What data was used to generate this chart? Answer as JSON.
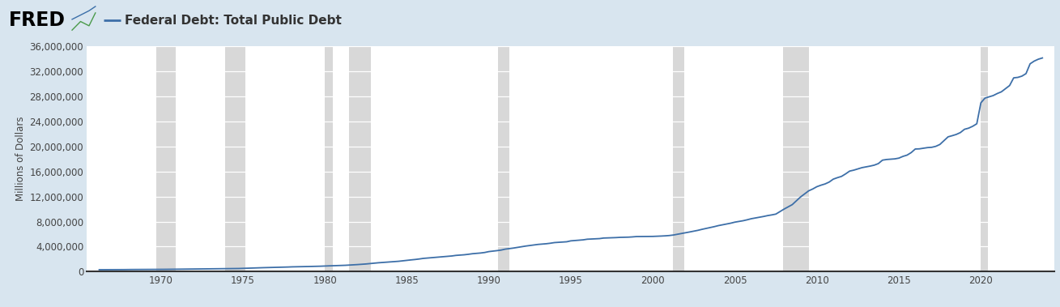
{
  "title": "Federal Debt: Total Public Debt",
  "ylabel": "Millions of Dollars",
  "line_color": "#3d6fa8",
  "line_width": 1.3,
  "fig_bg_color": "#d8e5ef",
  "plot_bg_color": "#ffffff",
  "header_bg_color": "#d8e5ef",
  "ylim": [
    0,
    36000000
  ],
  "yticks": [
    0,
    4000000,
    8000000,
    12000000,
    16000000,
    20000000,
    24000000,
    28000000,
    32000000,
    36000000
  ],
  "ytick_labels": [
    "0",
    "4,000,000",
    "8,000,000",
    "12,000,000",
    "16,000,000",
    "20,000,000",
    "24,000,000",
    "28,000,000",
    "32,000,000",
    "36,000,000"
  ],
  "xlim_start": 1965.5,
  "xlim_end": 2024.5,
  "xtick_years": [
    1970,
    1975,
    1980,
    1985,
    1990,
    1995,
    2000,
    2005,
    2010,
    2015,
    2020
  ],
  "recession_bands": [
    [
      1969.75,
      1970.92
    ],
    [
      1973.92,
      1975.17
    ],
    [
      1980.0,
      1980.5
    ],
    [
      1981.5,
      1982.83
    ],
    [
      1990.58,
      1991.25
    ],
    [
      2001.25,
      2001.92
    ],
    [
      2007.92,
      2009.5
    ],
    [
      2020.0,
      2020.42
    ]
  ],
  "recession_color": "#c8c8c8",
  "recession_alpha": 0.7,
  "data": [
    [
      1966.25,
      319907
    ],
    [
      1966.5,
      321400
    ],
    [
      1966.75,
      323000
    ],
    [
      1967.0,
      326331
    ],
    [
      1967.25,
      328000
    ],
    [
      1967.5,
      330000
    ],
    [
      1967.75,
      333000
    ],
    [
      1968.0,
      347578
    ],
    [
      1968.25,
      349000
    ],
    [
      1968.5,
      351000
    ],
    [
      1968.75,
      352000
    ],
    [
      1969.0,
      353720
    ],
    [
      1969.25,
      354000
    ],
    [
      1969.5,
      355000
    ],
    [
      1969.75,
      356000
    ],
    [
      1970.0,
      370919
    ],
    [
      1970.25,
      375000
    ],
    [
      1970.5,
      382000
    ],
    [
      1970.75,
      390000
    ],
    [
      1971.0,
      398129
    ],
    [
      1971.25,
      403000
    ],
    [
      1971.5,
      409000
    ],
    [
      1971.75,
      415000
    ],
    [
      1972.0,
      427260
    ],
    [
      1972.25,
      433000
    ],
    [
      1972.5,
      440000
    ],
    [
      1972.75,
      447000
    ],
    [
      1973.0,
      458141
    ],
    [
      1973.25,
      462000
    ],
    [
      1973.5,
      466000
    ],
    [
      1973.75,
      470000
    ],
    [
      1974.0,
      475059
    ],
    [
      1974.25,
      483000
    ],
    [
      1974.5,
      495000
    ],
    [
      1974.75,
      510000
    ],
    [
      1975.0,
      533189
    ],
    [
      1975.25,
      556000
    ],
    [
      1975.5,
      577000
    ],
    [
      1975.75,
      598000
    ],
    [
      1976.0,
      620433
    ],
    [
      1976.25,
      641000
    ],
    [
      1976.5,
      657000
    ],
    [
      1976.75,
      676000
    ],
    [
      1977.0,
      698840
    ],
    [
      1977.25,
      714000
    ],
    [
      1977.5,
      729000
    ],
    [
      1977.75,
      745000
    ],
    [
      1978.0,
      771544
    ],
    [
      1978.25,
      782000
    ],
    [
      1978.5,
      793000
    ],
    [
      1978.75,
      807000
    ],
    [
      1979.0,
      826519
    ],
    [
      1979.25,
      840000
    ],
    [
      1979.5,
      857000
    ],
    [
      1979.75,
      876000
    ],
    [
      1980.0,
      907701
    ],
    [
      1980.25,
      930000
    ],
    [
      1980.5,
      952000
    ],
    [
      1980.75,
      970000
    ],
    [
      1981.0,
      994845
    ],
    [
      1981.25,
      1020000
    ],
    [
      1981.5,
      1055000
    ],
    [
      1981.75,
      1090000
    ],
    [
      1982.0,
      1137345
    ],
    [
      1982.25,
      1185000
    ],
    [
      1982.5,
      1230000
    ],
    [
      1982.75,
      1295000
    ],
    [
      1983.0,
      1371660
    ],
    [
      1983.25,
      1420000
    ],
    [
      1983.5,
      1468000
    ],
    [
      1983.75,
      1515000
    ],
    [
      1984.0,
      1564586
    ],
    [
      1984.25,
      1610000
    ],
    [
      1984.5,
      1660000
    ],
    [
      1984.75,
      1735000
    ],
    [
      1985.0,
      1817521
    ],
    [
      1985.25,
      1880000
    ],
    [
      1985.5,
      1945000
    ],
    [
      1985.75,
      2025000
    ],
    [
      1986.0,
      2120629
    ],
    [
      1986.25,
      2175000
    ],
    [
      1986.5,
      2225000
    ],
    [
      1986.75,
      2285000
    ],
    [
      1987.0,
      2346125
    ],
    [
      1987.25,
      2395000
    ],
    [
      1987.5,
      2445000
    ],
    [
      1987.75,
      2510000
    ],
    [
      1988.0,
      2601307
    ],
    [
      1988.25,
      2650000
    ],
    [
      1988.5,
      2700000
    ],
    [
      1988.75,
      2775000
    ],
    [
      1989.0,
      2867500
    ],
    [
      1989.25,
      2920000
    ],
    [
      1989.5,
      2980000
    ],
    [
      1989.75,
      3065000
    ],
    [
      1990.0,
      3206290
    ],
    [
      1990.25,
      3280000
    ],
    [
      1990.5,
      3360000
    ],
    [
      1990.75,
      3450000
    ],
    [
      1991.0,
      3598178
    ],
    [
      1991.25,
      3680000
    ],
    [
      1991.5,
      3770000
    ],
    [
      1991.75,
      3880000
    ],
    [
      1992.0,
      4001787
    ],
    [
      1992.25,
      4090000
    ],
    [
      1992.5,
      4175000
    ],
    [
      1992.75,
      4265000
    ],
    [
      1993.0,
      4351044
    ],
    [
      1993.25,
      4405000
    ],
    [
      1993.5,
      4460000
    ],
    [
      1993.75,
      4540000
    ],
    [
      1994.0,
      4643307
    ],
    [
      1994.25,
      4685000
    ],
    [
      1994.5,
      4730000
    ],
    [
      1994.75,
      4775000
    ],
    [
      1995.0,
      4920586
    ],
    [
      1995.25,
      4970000
    ],
    [
      1995.5,
      5020000
    ],
    [
      1995.75,
      5080000
    ],
    [
      1996.0,
      5181465
    ],
    [
      1996.25,
      5210000
    ],
    [
      1996.5,
      5240000
    ],
    [
      1996.75,
      5280000
    ],
    [
      1997.0,
      5369206
    ],
    [
      1997.25,
      5390000
    ],
    [
      1997.5,
      5410000
    ],
    [
      1997.75,
      5440000
    ],
    [
      1998.0,
      5478189
    ],
    [
      1998.25,
      5490000
    ],
    [
      1998.5,
      5510000
    ],
    [
      1998.75,
      5550000
    ],
    [
      1999.0,
      5605523
    ],
    [
      1999.25,
      5610000
    ],
    [
      1999.5,
      5620000
    ],
    [
      1999.75,
      5625000
    ],
    [
      2000.0,
      5628700
    ],
    [
      2000.25,
      5650000
    ],
    [
      2000.5,
      5685000
    ],
    [
      2000.75,
      5720000
    ],
    [
      2001.0,
      5769881
    ],
    [
      2001.25,
      5850000
    ],
    [
      2001.5,
      5970000
    ],
    [
      2001.75,
      6080000
    ],
    [
      2002.0,
      6198401
    ],
    [
      2002.25,
      6340000
    ],
    [
      2002.5,
      6470000
    ],
    [
      2002.75,
      6600000
    ],
    [
      2003.0,
      6760014
    ],
    [
      2003.25,
      6900000
    ],
    [
      2003.5,
      7040000
    ],
    [
      2003.75,
      7190000
    ],
    [
      2004.0,
      7354657
    ],
    [
      2004.25,
      7480000
    ],
    [
      2004.5,
      7600000
    ],
    [
      2004.75,
      7740000
    ],
    [
      2005.0,
      7905300
    ],
    [
      2005.25,
      8020000
    ],
    [
      2005.5,
      8130000
    ],
    [
      2005.75,
      8280000
    ],
    [
      2006.0,
      8451350
    ],
    [
      2006.25,
      8570000
    ],
    [
      2006.5,
      8690000
    ],
    [
      2006.75,
      8810000
    ],
    [
      2007.0,
      8950744
    ],
    [
      2007.25,
      9060000
    ],
    [
      2007.5,
      9190000
    ],
    [
      2007.75,
      9590000
    ],
    [
      2008.0,
      9986082
    ],
    [
      2008.25,
      10350000
    ],
    [
      2008.5,
      10700000
    ],
    [
      2008.75,
      11300000
    ],
    [
      2009.0,
      11909829
    ],
    [
      2009.25,
      12400000
    ],
    [
      2009.5,
      12900000
    ],
    [
      2009.75,
      13200000
    ],
    [
      2010.0,
      13561623
    ],
    [
      2010.25,
      13800000
    ],
    [
      2010.5,
      14000000
    ],
    [
      2010.75,
      14300000
    ],
    [
      2011.0,
      14764222
    ],
    [
      2011.25,
      15000000
    ],
    [
      2011.5,
      15200000
    ],
    [
      2011.75,
      15600000
    ],
    [
      2012.0,
      16050921
    ],
    [
      2012.25,
      16200000
    ],
    [
      2012.5,
      16400000
    ],
    [
      2012.75,
      16600000
    ],
    [
      2013.0,
      16719434
    ],
    [
      2013.25,
      16850000
    ],
    [
      2013.5,
      17000000
    ],
    [
      2013.75,
      17250000
    ],
    [
      2014.0,
      17794328
    ],
    [
      2014.25,
      17900000
    ],
    [
      2014.5,
      17950000
    ],
    [
      2014.75,
      18000000
    ],
    [
      2015.0,
      18120106
    ],
    [
      2015.25,
      18400000
    ],
    [
      2015.5,
      18600000
    ],
    [
      2015.75,
      19000000
    ],
    [
      2016.0,
      19573445
    ],
    [
      2016.25,
      19600000
    ],
    [
      2016.5,
      19700000
    ],
    [
      2016.75,
      19800000
    ],
    [
      2017.0,
      19844587
    ],
    [
      2017.25,
      20000000
    ],
    [
      2017.5,
      20300000
    ],
    [
      2017.75,
      20900000
    ],
    [
      2018.0,
      21516058
    ],
    [
      2018.25,
      21700000
    ],
    [
      2018.5,
      21900000
    ],
    [
      2018.75,
      22200000
    ],
    [
      2019.0,
      22719401
    ],
    [
      2019.25,
      22900000
    ],
    [
      2019.5,
      23200000
    ],
    [
      2019.75,
      23600000
    ],
    [
      2020.0,
      26945391
    ],
    [
      2020.25,
      27700000
    ],
    [
      2020.5,
      27900000
    ],
    [
      2020.75,
      28100000
    ],
    [
      2021.0,
      28427934
    ],
    [
      2021.25,
      28700000
    ],
    [
      2021.5,
      29200000
    ],
    [
      2021.75,
      29700000
    ],
    [
      2022.0,
      30928911
    ],
    [
      2022.25,
      31000000
    ],
    [
      2022.5,
      31200000
    ],
    [
      2022.75,
      31600000
    ],
    [
      2023.0,
      33167000
    ],
    [
      2023.25,
      33600000
    ],
    [
      2023.5,
      33900000
    ],
    [
      2023.75,
      34100000
    ]
  ]
}
